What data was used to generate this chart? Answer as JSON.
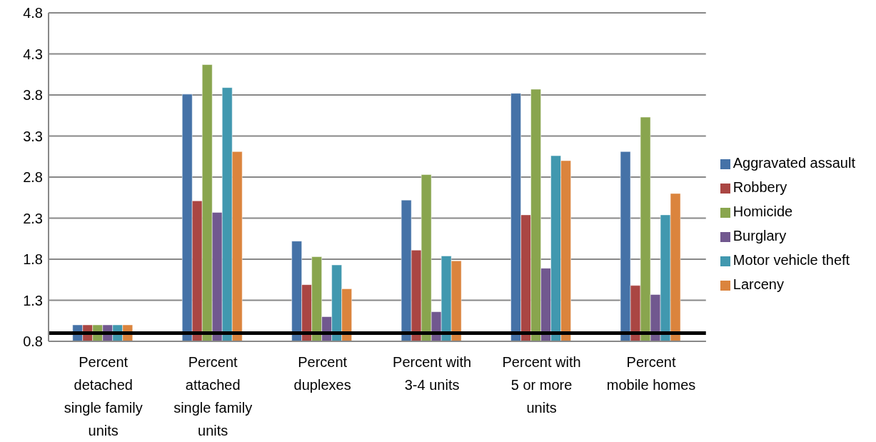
{
  "chart_data": {
    "type": "bar",
    "categories": [
      "Percent detached single family units",
      "Percent attached single family units",
      "Percent duplexes",
      "Percent with 3-4 units",
      "Percent with 5 or more units",
      "Percent mobile homes"
    ],
    "series": [
      {
        "name": "Aggravated assault",
        "color": "#4572a7",
        "values": [
          1.0,
          3.81,
          2.02,
          2.52,
          3.82,
          3.11
        ]
      },
      {
        "name": "Robbery",
        "color": "#aa4643",
        "values": [
          1.0,
          2.51,
          1.49,
          1.91,
          2.34,
          1.48
        ]
      },
      {
        "name": "Homicide",
        "color": "#89a54e",
        "values": [
          1.0,
          4.17,
          1.83,
          2.83,
          3.87,
          3.53
        ]
      },
      {
        "name": "Burglary",
        "color": "#71588f",
        "values": [
          1.0,
          2.37,
          1.1,
          1.16,
          1.69,
          1.37
        ]
      },
      {
        "name": "Motor vehicle theft",
        "color": "#4198af",
        "values": [
          1.0,
          3.89,
          1.73,
          1.84,
          3.06,
          2.34
        ]
      },
      {
        "name": "Larceny",
        "color": "#db843d",
        "values": [
          1.0,
          3.11,
          1.44,
          1.78,
          3.0,
          2.6
        ]
      }
    ],
    "ylim": [
      0.8,
      4.8
    ],
    "yticks": [
      0.8,
      1.3,
      1.8,
      2.3,
      2.8,
      3.3,
      3.8,
      4.3,
      4.8
    ],
    "grid": "y",
    "legend": "right",
    "ref_lines": [
      {
        "axis": "y",
        "value": 0.9,
        "color": "#000000"
      }
    ]
  }
}
